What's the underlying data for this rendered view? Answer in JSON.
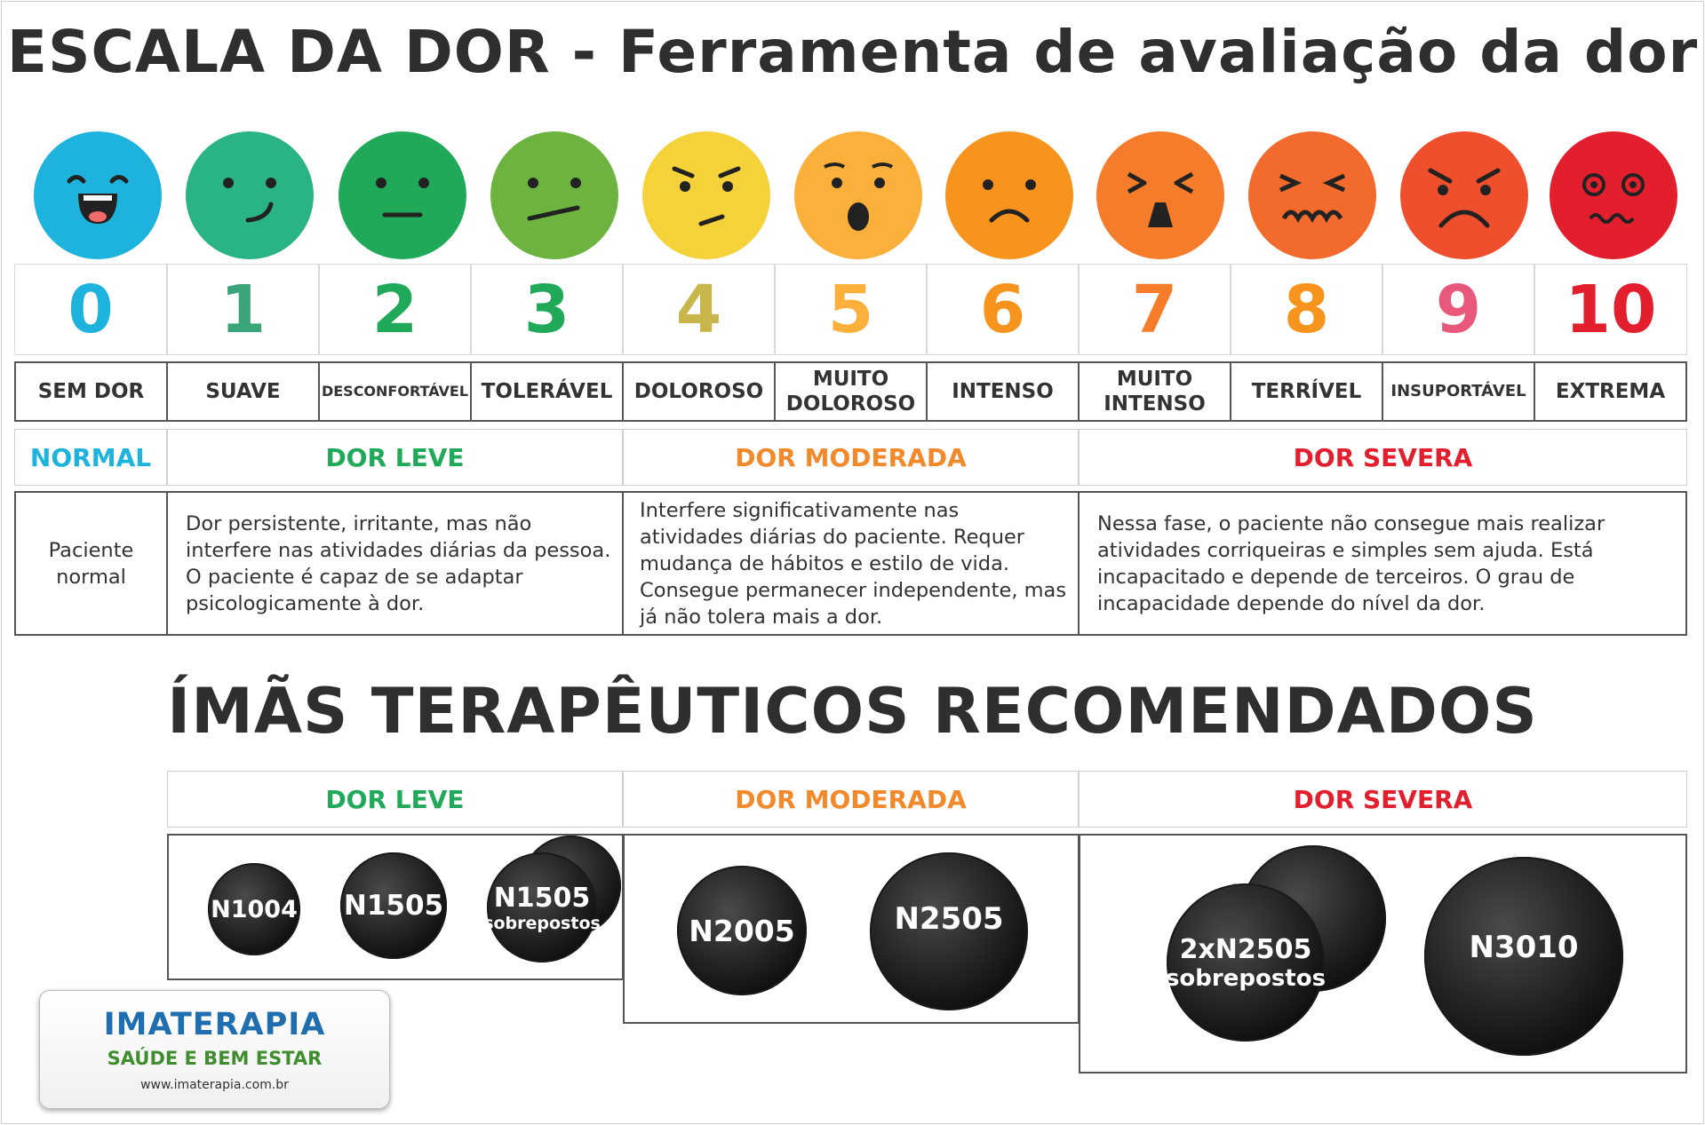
{
  "title": "ESCALA DA DOR - Ferramenta de avaliação da dor",
  "scale": [
    {
      "n": "0",
      "label": "SEM DOR",
      "face": "laughing-face-icon",
      "color": "#1eb3dd"
    },
    {
      "n": "1",
      "label": "SUAVE",
      "face": "slight-smile-face-icon",
      "color": "#2ab383"
    },
    {
      "n": "2",
      "label": "DESCONFORTÁVEL",
      "face": "neutral-face-icon",
      "color": "#21a95a"
    },
    {
      "n": "3",
      "label": "TOLERÁVEL",
      "face": "uneasy-face-icon",
      "color": "#6cb43f"
    },
    {
      "n": "4",
      "label": "DOLOROSO",
      "face": "annoyed-face-icon",
      "color": "#f5d23a"
    },
    {
      "n": "5",
      "label": "MUITO DOLOROSO",
      "face": "shocked-face-icon",
      "color": "#fbb03b"
    },
    {
      "n": "6",
      "label": "INTENSO",
      "face": "frowning-face-icon",
      "color": "#f7941d"
    },
    {
      "n": "7",
      "label": "MUITO INTENSO",
      "face": "anguished-face-icon",
      "color": "#f47c2a"
    },
    {
      "n": "8",
      "label": "TERRÍVEL",
      "face": "grimacing-face-icon",
      "color": "#f26a2c"
    },
    {
      "n": "9",
      "label": "INSUPORTÁVEL",
      "face": "angry-face-icon",
      "color": "#ef4f2d"
    },
    {
      "n": "10",
      "label": "EXTREMA",
      "face": "dizzy-face-icon",
      "color": "#e31e2d"
    }
  ],
  "number_colors": [
    "#1eb3dd",
    "#3aa579",
    "#21a95a",
    "#21a95a",
    "#c9b64a",
    "#fbb03b",
    "#f7941d",
    "#f47c2a",
    "#f7941d",
    "#e8587a",
    "#e31e2d"
  ],
  "categories": [
    {
      "label": "NORMAL",
      "color": "#1eb3dd"
    },
    {
      "label": "DOR LEVE",
      "color": "#21a95a"
    },
    {
      "label": "DOR MODERADA",
      "color": "#f28a2c"
    },
    {
      "label": "DOR SEVERA",
      "color": "#e31e2d"
    }
  ],
  "descriptions": [
    "Paciente normal",
    "Dor persistente, irritante, mas não interfere nas atividades diárias da pessoa. O paciente é capaz de se adaptar psicologicamente à dor.",
    "Interfere significativamente nas atividades diárias do paciente. Requer mudança de hábitos e estilo de vida. Consegue permanecer independente, mas já não tolera mais a dor.",
    "Nessa fase, o paciente não consegue mais realizar atividades corriqueiras e simples sem ajuda. Está incapacitado e depende de terceiros. O grau de incapacidade depende do nível da dor."
  ],
  "magnets_title": "ÍMÃS TERAPÊUTICOS RECOMENDADOS",
  "magnet_groups": [
    {
      "label": "DOR LEVE",
      "color": "#21a95a",
      "items": [
        {
          "name": "N1004",
          "sub": ""
        },
        {
          "name": "N1505",
          "sub": ""
        },
        {
          "name": "N1505",
          "sub": "sobrepostos"
        }
      ]
    },
    {
      "label": "DOR MODERADA",
      "color": "#f28a2c",
      "items": [
        {
          "name": "N2005",
          "sub": ""
        },
        {
          "name": "N2505",
          "sub": ""
        }
      ]
    },
    {
      "label": "DOR SEVERA",
      "color": "#e31e2d",
      "items": [
        {
          "name": "2xN2505",
          "sub": "sobrepostos"
        },
        {
          "name": "N3010",
          "sub": ""
        }
      ]
    }
  ],
  "logo": {
    "name": "IMATERAPIA",
    "tagline": "SAÚDE E BEM ESTAR",
    "url": "www.imaterapia.com.br"
  }
}
